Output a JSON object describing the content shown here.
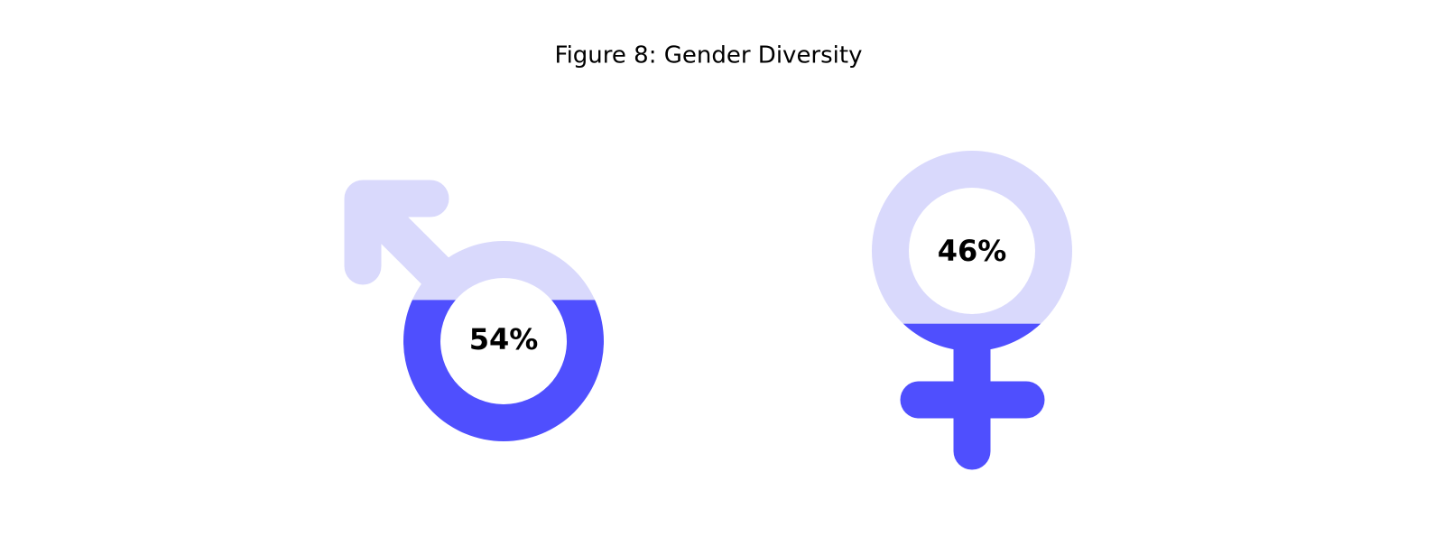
{
  "chart_data": {
    "type": "pictorial",
    "title": "Figure 8: Gender Diversity",
    "values": [
      54,
      46
    ],
    "value_labels": [
      "54%",
      "46%"
    ],
    "color": "#4f4ffe",
    "empty_color": "#d9d9fc"
  }
}
